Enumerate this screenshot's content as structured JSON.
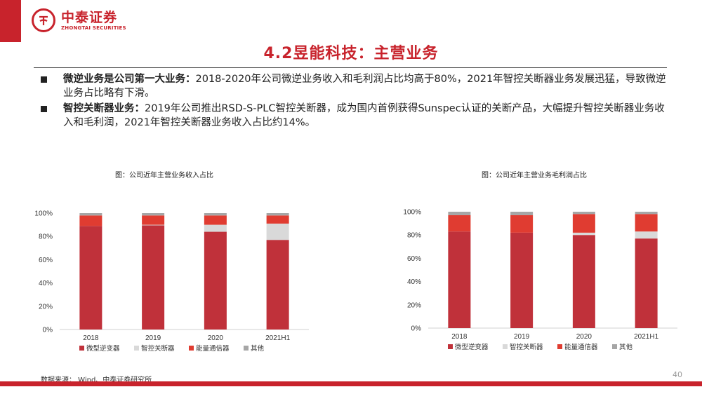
{
  "header": {
    "logo_cn": "中泰证券",
    "logo_en": "ZHONGTAI SECURITIES",
    "accent_color": "#c8232c"
  },
  "page_title": "4.2昱能科技：主营业务",
  "bullets": [
    {
      "bold": "微逆业务是公司第一大业务：",
      "text": "2018-2020年公司微逆业务收入和毛利润占比均高于80%，2021年智控关断器业务发展迅猛，导致微逆业务占比略有下滑。"
    },
    {
      "bold": "智控关断器业务：",
      "text": "2019年公司推出RSD-S-PLC智控关断器，成为国内首例获得Sunspec认证的关断产品，大幅提升智控关断器业务收入和毛利润，2021年智控关断器业务收入占比约14%。"
    }
  ],
  "chart_data": [
    {
      "type": "bar",
      "stacked": true,
      "title": "图：公司近年主营业务收入占比",
      "categories": [
        "2018",
        "2019",
        "2020",
        "2021H1"
      ],
      "y_ticks": [
        "0%",
        "20%",
        "40%",
        "60%",
        "80%",
        "100%"
      ],
      "ylim": [
        0,
        100
      ],
      "series": [
        {
          "name": "微型逆变器",
          "color": "#c0313a",
          "values": [
            89,
            89.5,
            84,
            77
          ]
        },
        {
          "name": "智控关断器",
          "color": "#d9d9d9",
          "values": [
            0,
            0.5,
            6,
            14
          ]
        },
        {
          "name": "能量通信器",
          "color": "#e03c31",
          "values": [
            9,
            8,
            8,
            7
          ]
        },
        {
          "name": "其他",
          "color": "#a6a6a6",
          "values": [
            2,
            2,
            2,
            2
          ]
        }
      ],
      "legend": "bottom"
    },
    {
      "type": "bar",
      "stacked": true,
      "title": "图：公司近年主营业务毛利润占比",
      "categories": [
        "2018",
        "2019",
        "2020",
        "2021H1"
      ],
      "y_ticks": [
        "0%",
        "20%",
        "40%",
        "60%",
        "80%",
        "100%"
      ],
      "ylim": [
        0,
        100
      ],
      "series": [
        {
          "name": "微型逆变器",
          "color": "#c0313a",
          "values": [
            83,
            82,
            80,
            77
          ]
        },
        {
          "name": "智控关断器",
          "color": "#d9d9d9",
          "values": [
            0,
            0,
            2,
            6
          ]
        },
        {
          "name": "能量通信器",
          "color": "#e03c31",
          "values": [
            14,
            15,
            16,
            15
          ]
        },
        {
          "name": "其他",
          "color": "#a6a6a6",
          "values": [
            3,
            3,
            2,
            2
          ]
        }
      ],
      "legend": "bottom"
    }
  ],
  "footer": {
    "source": "数据来源： Wind、中泰证券研究所",
    "page_number": "40"
  }
}
